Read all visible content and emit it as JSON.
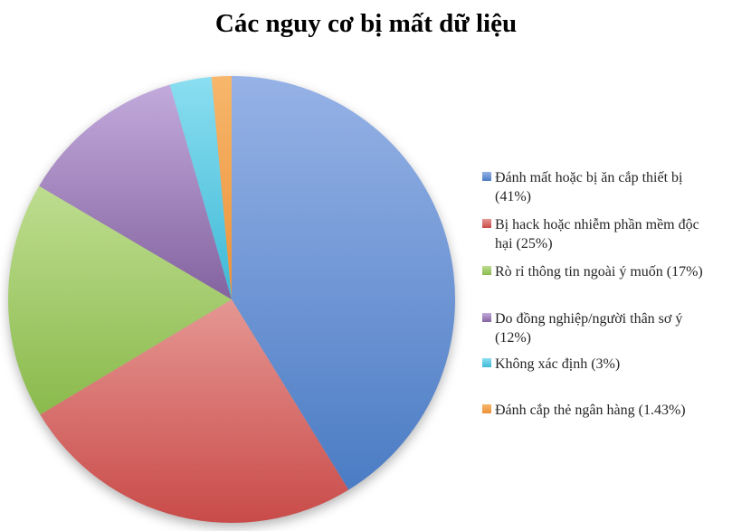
{
  "title": "Các nguy cơ bị mất dữ liệu",
  "chart_data": {
    "type": "pie",
    "title": "Các nguy cơ bị mất dữ liệu",
    "categories": [
      "Đánh mất hoặc bị ăn cắp thiết bị",
      "Bị hack hoặc nhiễm phần mềm độc hại",
      "Rò rỉ thông tin ngoài ý muốn",
      "Do đồng nghiệp/người thân sơ ý",
      "Không xác định",
      "Đánh cắp thẻ ngân hàng"
    ],
    "values": [
      41,
      25,
      17,
      12,
      3,
      1.43
    ],
    "unit": "%",
    "legend_labels": [
      "Đánh mất hoặc bị ăn cắp thiết bị (41%)",
      "Bị hack hoặc nhiễm phần mềm độc hại (25%)",
      "Rò rỉ thông tin ngoài ý muốn (17%)",
      "Do đồng nghiệp/người thân sơ ý (12%)",
      "Không xác định (3%)",
      "Đánh cắp thẻ ngân hàng (1.43%)"
    ],
    "legend_lines": [
      [
        "Đánh mất hoặc bị ăn cắp thiết bị",
        "(41%)"
      ],
      [
        "Bị hack hoặc nhiễm phần mềm độc",
        "hại (25%)"
      ],
      [
        "Rò rỉ thông tin ngoài ý muốn (17%)"
      ],
      [
        "Do đồng nghiệp/người thân sơ ý",
        "(12%)"
      ],
      [
        "Không xác định (3%)"
      ],
      [
        "Đánh cắp thẻ ngân hàng (1.43%)"
      ]
    ],
    "colors": [
      {
        "name": "blue",
        "light": "#96B2E6",
        "dark": "#4B7CC4"
      },
      {
        "name": "red",
        "light": "#E59793",
        "dark": "#C94B49"
      },
      {
        "name": "green",
        "light": "#BEDD90",
        "dark": "#8ABA4C"
      },
      {
        "name": "purple",
        "light": "#C2AADC",
        "dark": "#84639F"
      },
      {
        "name": "cyan",
        "light": "#8ADEF0",
        "dark": "#3FB9D6"
      },
      {
        "name": "orange",
        "light": "#F6B76C",
        "dark": "#EC9137"
      }
    ],
    "legend_position": "right",
    "direction": "clockwise",
    "start_angle_deg": 0,
    "grid": "off"
  }
}
